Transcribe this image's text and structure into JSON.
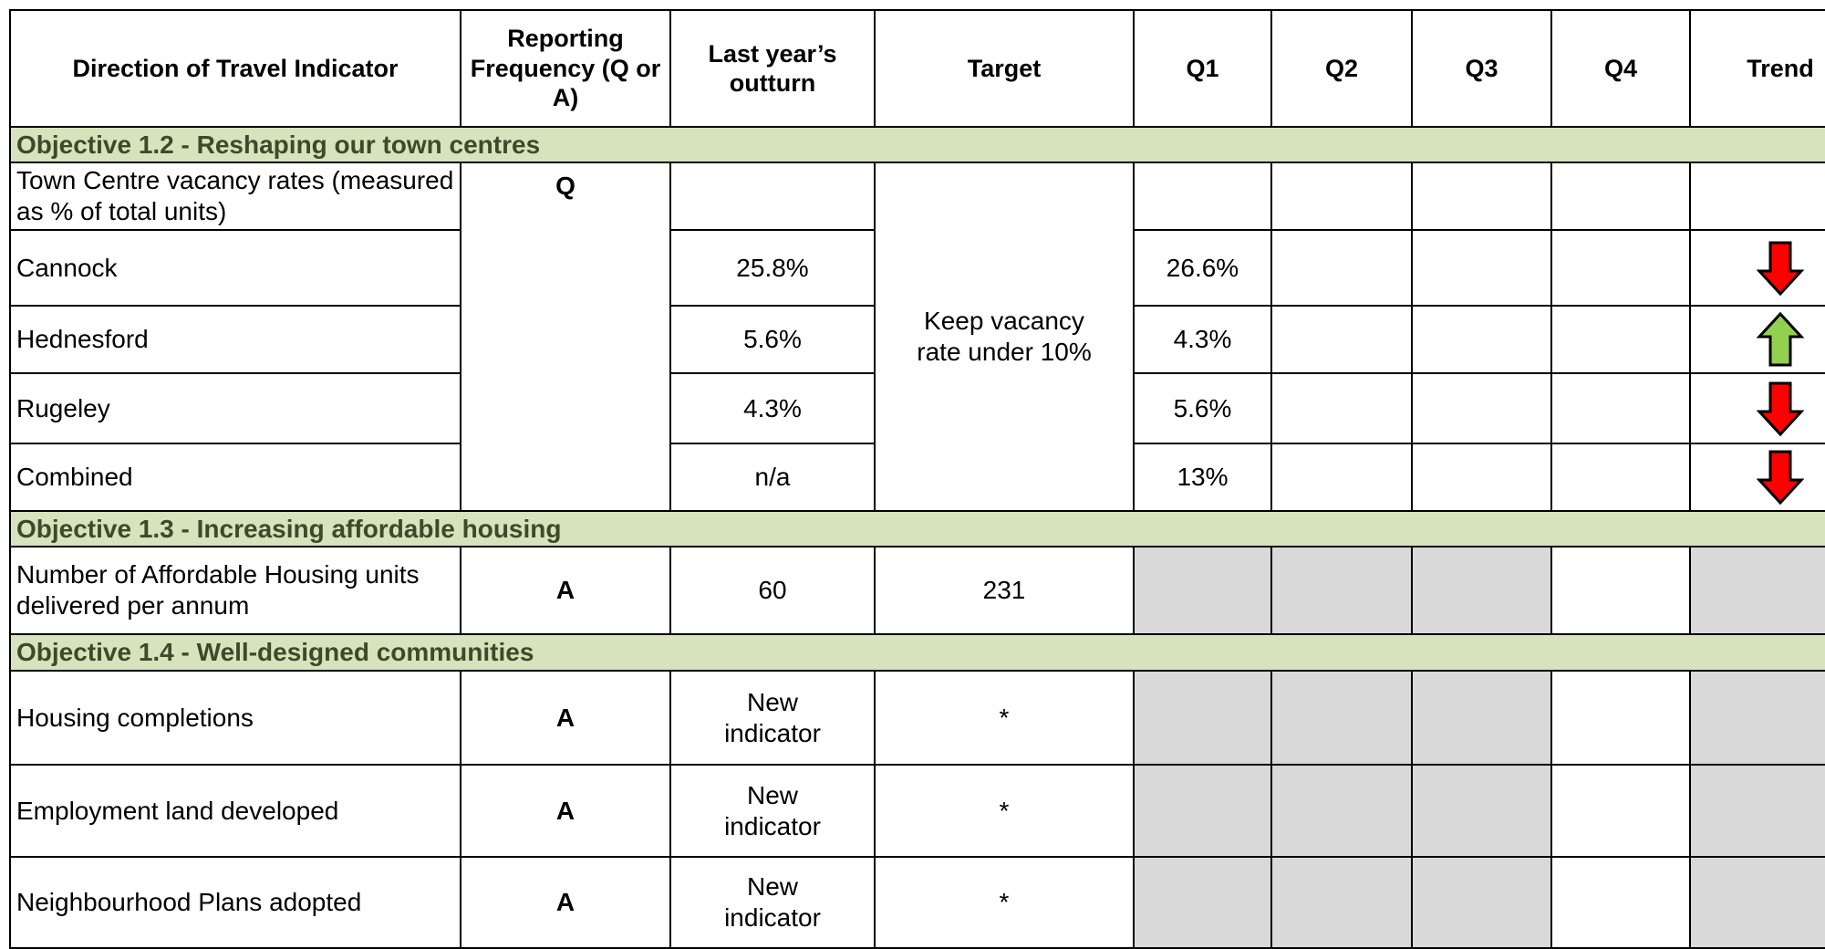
{
  "table": {
    "header": [
      "Direction of Travel Indicator",
      "Reporting Frequency (Q or A)",
      "Last year’s outturn",
      "Target",
      "Q1",
      "Q2",
      "Q3",
      "Q4",
      "Trend"
    ],
    "sections": [
      {
        "title": "Objective 1.2 - Reshaping our town centres",
        "frequency": "Q",
        "target": "Keep vacancy rate under 10%",
        "rows": [
          {
            "indicator": "Town Centre vacancy rates (measured as % of total units)"
          },
          {
            "indicator": "Cannock",
            "last_year": "25.8%",
            "q1": "26.6%"
          },
          {
            "indicator": "Hednesford",
            "last_year": "5.6%",
            "q1": "4.3%"
          },
          {
            "indicator": "Rugeley",
            "last_year": "4.3%",
            "q1": "5.6%"
          },
          {
            "indicator": "Combined",
            "last_year": "n/a",
            "q1": "13%"
          }
        ]
      },
      {
        "title": "Objective 1.3 - Increasing affordable housing",
        "rows": [
          {
            "indicator": "Number of Affordable Housing units delivered per annum",
            "frequency": "A",
            "last_year": "60",
            "target": "231"
          }
        ]
      },
      {
        "title": "Objective 1.4 - Well-designed communities",
        "rows": [
          {
            "indicator": "Housing completions",
            "frequency": "A",
            "last_year": "New indicator",
            "target": "*"
          },
          {
            "indicator": "Employment land developed",
            "frequency": "A",
            "last_year": "New indicator",
            "target": "*"
          },
          {
            "indicator": "Neighbourhood Plans adopted",
            "frequency": "A",
            "last_year": "New indicator",
            "target": "*"
          }
        ]
      }
    ]
  }
}
